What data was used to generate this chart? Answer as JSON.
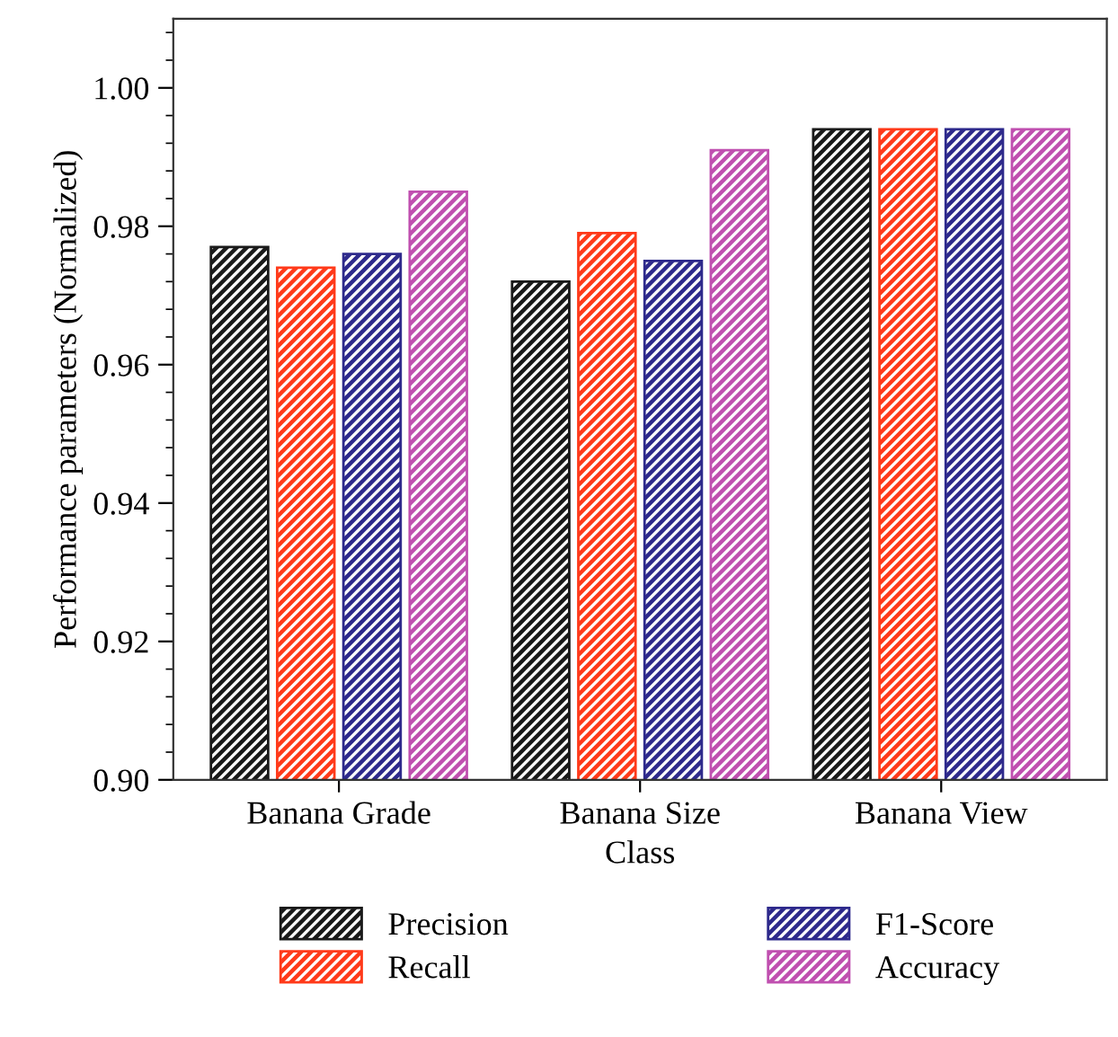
{
  "chart_data": {
    "type": "bar",
    "xlabel": "Class",
    "ylabel": "Performance parameters (Normalized)",
    "categories": [
      "Banana Grade",
      "Banana Size",
      "Banana View"
    ],
    "series": [
      {
        "name": "Precision",
        "color": "#1a1a1a",
        "values": [
          0.977,
          0.972,
          0.994
        ]
      },
      {
        "name": "Recall",
        "color": "#ff3a1a",
        "values": [
          0.974,
          0.979,
          0.994
        ]
      },
      {
        "name": "F1-Score",
        "color": "#2e2a8c",
        "values": [
          0.976,
          0.975,
          0.994
        ]
      },
      {
        "name": "Accuracy",
        "color": "#c050b0",
        "values": [
          0.985,
          0.991,
          0.994
        ]
      }
    ],
    "ylim": [
      0.9,
      1.01
    ],
    "yticks": [
      {
        "value": 0.9,
        "label": "0.90"
      },
      {
        "value": 0.904,
        "label": null
      },
      {
        "value": 0.908,
        "label": null
      },
      {
        "value": 0.912,
        "label": null
      },
      {
        "value": 0.916,
        "label": null
      },
      0.92,
      {
        "value": 0.924,
        "label": null
      },
      {
        "value": 0.928,
        "label": null
      },
      {
        "value": 0.932,
        "label": null
      },
      {
        "value": 0.936,
        "label": null
      },
      0.94,
      {
        "value": 0.944,
        "label": null
      },
      {
        "value": 0.948,
        "label": null
      },
      {
        "value": 0.952,
        "label": null
      },
      {
        "value": 0.956,
        "label": null
      },
      0.96,
      {
        "value": 0.964,
        "label": null
      },
      {
        "value": 0.968,
        "label": null
      },
      {
        "value": 0.972,
        "label": null
      },
      {
        "value": 0.976,
        "label": null
      },
      0.98,
      {
        "value": 0.984,
        "label": null
      },
      {
        "value": 0.988,
        "label": null
      },
      {
        "value": 0.992,
        "label": null
      },
      {
        "value": 0.996,
        "label": null
      },
      {
        "value": 1.0,
        "label": "1.00"
      },
      {
        "value": 1.004,
        "label": null
      },
      {
        "value": 1.008,
        "label": null
      }
    ],
    "grid": false,
    "legend": "bottom"
  }
}
